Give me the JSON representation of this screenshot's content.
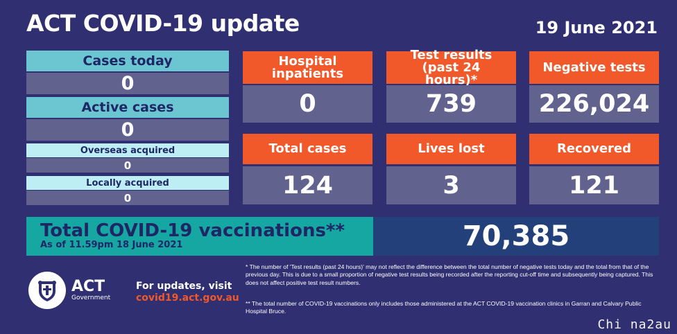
{
  "header": {
    "title": "ACT COVID-19 update",
    "date": "19 June 2021"
  },
  "left": {
    "cases_today_label": "Cases today",
    "cases_today_value": "0",
    "active_cases_label": "Active cases",
    "active_cases_value": "0",
    "overseas_label": "Overseas acquired",
    "overseas_value": "0",
    "locally_label": "Locally acquired",
    "locally_value": "0"
  },
  "stats": {
    "hospital_label": "Hospital inpatients",
    "hospital_value": "0",
    "tests_label": "Test results (past 24 hours)*",
    "tests_value": "739",
    "negative_label": "Negative tests",
    "negative_value": "226,024",
    "total_label": "Total cases",
    "total_value": "124",
    "lives_label": "Lives lost",
    "lives_value": "3",
    "recovered_label": "Recovered",
    "recovered_value": "121"
  },
  "vaccinations": {
    "title": "Total COVID-19 vaccinations**",
    "subtitle": "As of 11.59pm 18 June 2021",
    "value": "70,385"
  },
  "footer": {
    "logo_text": "ACT",
    "logo_subtext": "Government",
    "updates_text": "For updates, visit",
    "updates_link": "covid19.act.gov.au",
    "note1": "* The number of 'Test results (past 24 hours)' may not reflect the difference between the total number of negative tests today and the total from that of the previous day. This is due to a small proportion of negative test results being recorded after the reporting cut-off time and subsequently being captured. This does not affect positive test result numbers.",
    "note2": "** The total number of COVID-19 vaccinations only includes those administered at the ACT COVID-19 vaccination clinics in Garran and Calvary Public Hospital Bruce."
  },
  "watermark": "Chi na2au",
  "colors": {
    "background": "#2f2f72",
    "orange": "#f1582a",
    "teal": "#16a7a2",
    "cyan": "#6cc6d1",
    "value_box": "#62628f"
  }
}
